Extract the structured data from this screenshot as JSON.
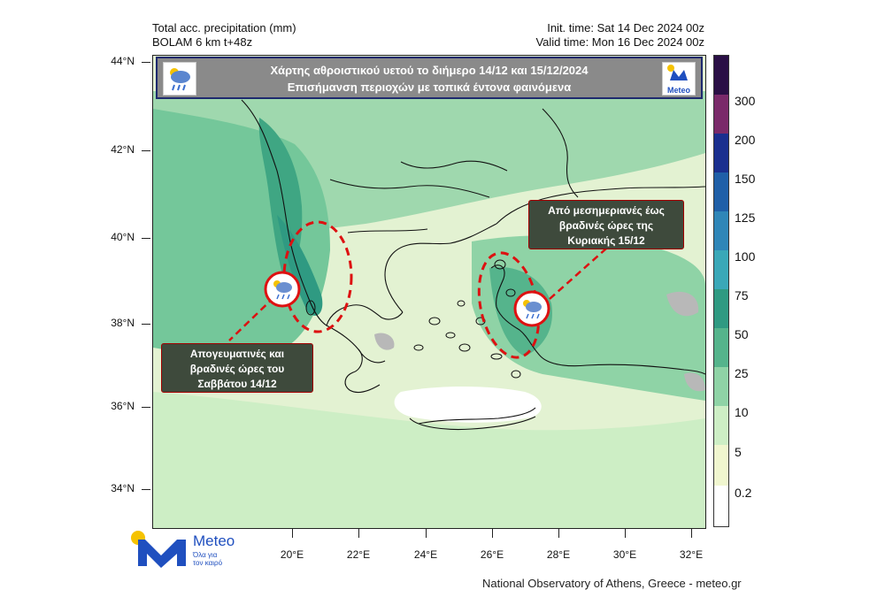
{
  "header": {
    "left_line1": "Total acc. precipitation (mm)",
    "left_line2": "BOLAM 6 km t+48z",
    "right_line1": "Init. time: Sat 14 Dec 2024 00z",
    "right_line2": "Valid time: Mon 16 Dec 2024 00z"
  },
  "banner": {
    "line1": "Χάρτης αθροιστικού υετού το διήμερο 14/12 και 15/12/2024",
    "line2": "Επισήμανση περιοχών με τοπικά έντονα φαινόμενα",
    "right_logo_text": "Meteo",
    "left_icon": "rain-cloud-icon"
  },
  "callouts": {
    "left": [
      "Απογευματινές και",
      "βραδινές ώρες του",
      "Σαββάτου 14/12"
    ],
    "right": [
      "Από μεσημεριανές έως",
      "βραδινές ώρες της",
      "Κυριακής 15/12"
    ]
  },
  "axes": {
    "lat_labels": [
      "44°N",
      "42°N",
      "40°N",
      "38°N",
      "36°N",
      "34°N"
    ],
    "lon_labels": [
      "20°E",
      "22°E",
      "24°E",
      "26°E",
      "28°E",
      "30°E",
      "32°E"
    ]
  },
  "colorbar": {
    "labels": [
      "300",
      "200",
      "150",
      "125",
      "100",
      "75",
      "50",
      "25",
      "10",
      "5",
      "0.2"
    ],
    "colors": [
      "#2a0f45",
      "#7a2a6a",
      "#1a2f8f",
      "#1f5fa8",
      "#2f86b8",
      "#3aa8b8",
      "#2f9a82",
      "#55b48c",
      "#8fd3a6",
      "#cdeec5",
      "#f0f6cf",
      "#ffffff"
    ]
  },
  "footer": {
    "logo_text": "Meteo",
    "logo_tagline_1": "Όλα για",
    "logo_tagline_2": "τον καιρό",
    "credit": "National Observatory of Athens, Greece - meteo.gr"
  }
}
